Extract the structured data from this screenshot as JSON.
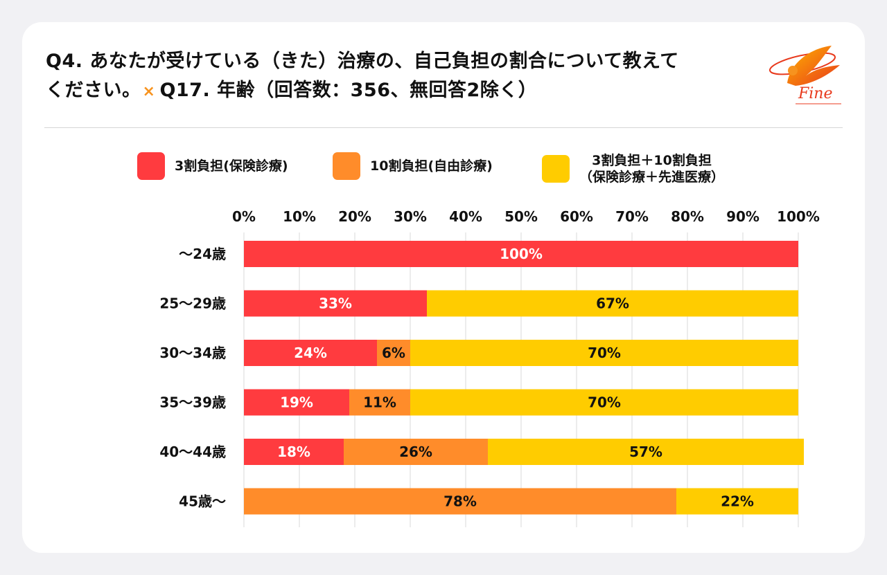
{
  "title": {
    "line1": "Q4. あなたが受けている（きた）治療の、自己負担の割合について教えて",
    "line2_part1": "ください。",
    "cross_symbol": "×",
    "line2_part2": "Q17. 年齢（回答数：356、無回答2除く）"
  },
  "logo": {
    "text": "Fine"
  },
  "colors": {
    "series1": "#ff3b3f",
    "series2": "#ff8c2a",
    "series3": "#ffcc00",
    "label_light": "#ffffff",
    "label_dark": "#111111"
  },
  "chart_data": {
    "type": "bar",
    "orientation": "horizontal",
    "stacked": true,
    "categories": [
      "〜24歳",
      "25〜29歳",
      "30〜34歳",
      "35〜39歳",
      "40〜44歳",
      "45歳〜"
    ],
    "series": [
      {
        "name": "3割負担(保険診療)",
        "values": [
          100,
          33,
          24,
          19,
          18,
          0
        ]
      },
      {
        "name": "10割負担(自由診療)",
        "values": [
          0,
          0,
          6,
          11,
          26,
          78
        ]
      },
      {
        "name": "3割負担＋10割負担（保険診療＋先進医療）",
        "values": [
          0,
          67,
          70,
          70,
          57,
          22
        ]
      }
    ],
    "legend": [
      {
        "line1": "3割負担(保険診療)",
        "line2": ""
      },
      {
        "line1": "10割負担(自由診療)",
        "line2": ""
      },
      {
        "line1": "3割負担＋10割負担",
        "line2": "（保険診療＋先進医療）"
      }
    ],
    "x_ticks": [
      "0%",
      "10%",
      "20%",
      "30%",
      "40%",
      "50%",
      "60%",
      "70%",
      "80%",
      "90%",
      "100%"
    ],
    "xlim": [
      0,
      100
    ],
    "grid": true,
    "legend_position": "top",
    "value_suffix": "%"
  }
}
